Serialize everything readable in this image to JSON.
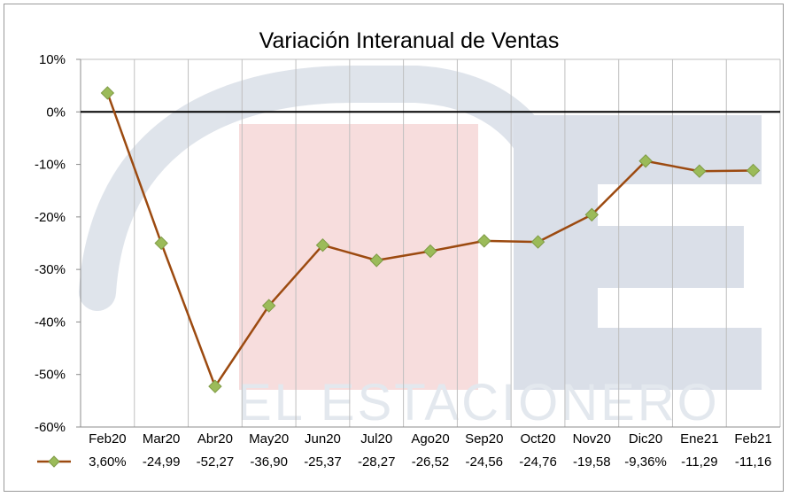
{
  "chart_data": {
    "type": "line",
    "title": "Variación Interanual de Ventas",
    "categories": [
      "Feb20",
      "Mar20",
      "Abr20",
      "May20",
      "Jun20",
      "Jul20",
      "Ago20",
      "Sep20",
      "Oct20",
      "Nov20",
      "Dic20",
      "Ene21",
      "Feb21"
    ],
    "series": [
      {
        "values": [
          3.6,
          -24.99,
          -52.27,
          -36.9,
          -25.37,
          -28.27,
          -26.52,
          -24.56,
          -24.76,
          -19.58,
          -9.36,
          -11.29,
          -11.16
        ],
        "labels": [
          "3,60%",
          "-24,99",
          "-52,27",
          "-36,90",
          "-25,37",
          "-28,27",
          "-26,52",
          "-24,56",
          "-24,76",
          "-19,58",
          "-9,36%",
          "-11,29",
          "-11,16"
        ],
        "line_color": "#9c4a10",
        "marker_color": "#9bbb59"
      }
    ],
    "ylim": [
      -60,
      10
    ],
    "y_ticks": [
      10,
      0,
      -10,
      -20,
      -30,
      -40,
      -50,
      -60
    ],
    "y_tick_labels": [
      "10%",
      "0%",
      "-10%",
      "-20%",
      "-30%",
      "-40%",
      "-50%",
      "-60%"
    ],
    "grid": "vertical",
    "legend": "data-table-below",
    "watermark": "EL ESTACIONERO"
  }
}
